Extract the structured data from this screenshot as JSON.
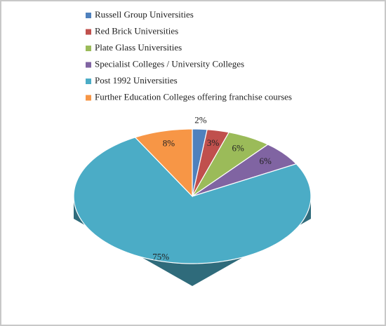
{
  "chart_data": {
    "type": "pie",
    "categories": [
      "Russell Group Universities",
      "Red Brick Universities",
      "Plate Glass Universities",
      "Specialist Colleges / University Colleges",
      "Post 1992 Universities",
      "Further Education Colleges offering franchise courses"
    ],
    "values": [
      2,
      3,
      6,
      6,
      75,
      8
    ],
    "value_labels": [
      "2%",
      "3%",
      "6%",
      "6%",
      "75%",
      "8%"
    ],
    "colors": [
      "#4f81bd",
      "#c0504d",
      "#9bbb59",
      "#8064a2",
      "#4bacc6",
      "#f79646"
    ]
  }
}
